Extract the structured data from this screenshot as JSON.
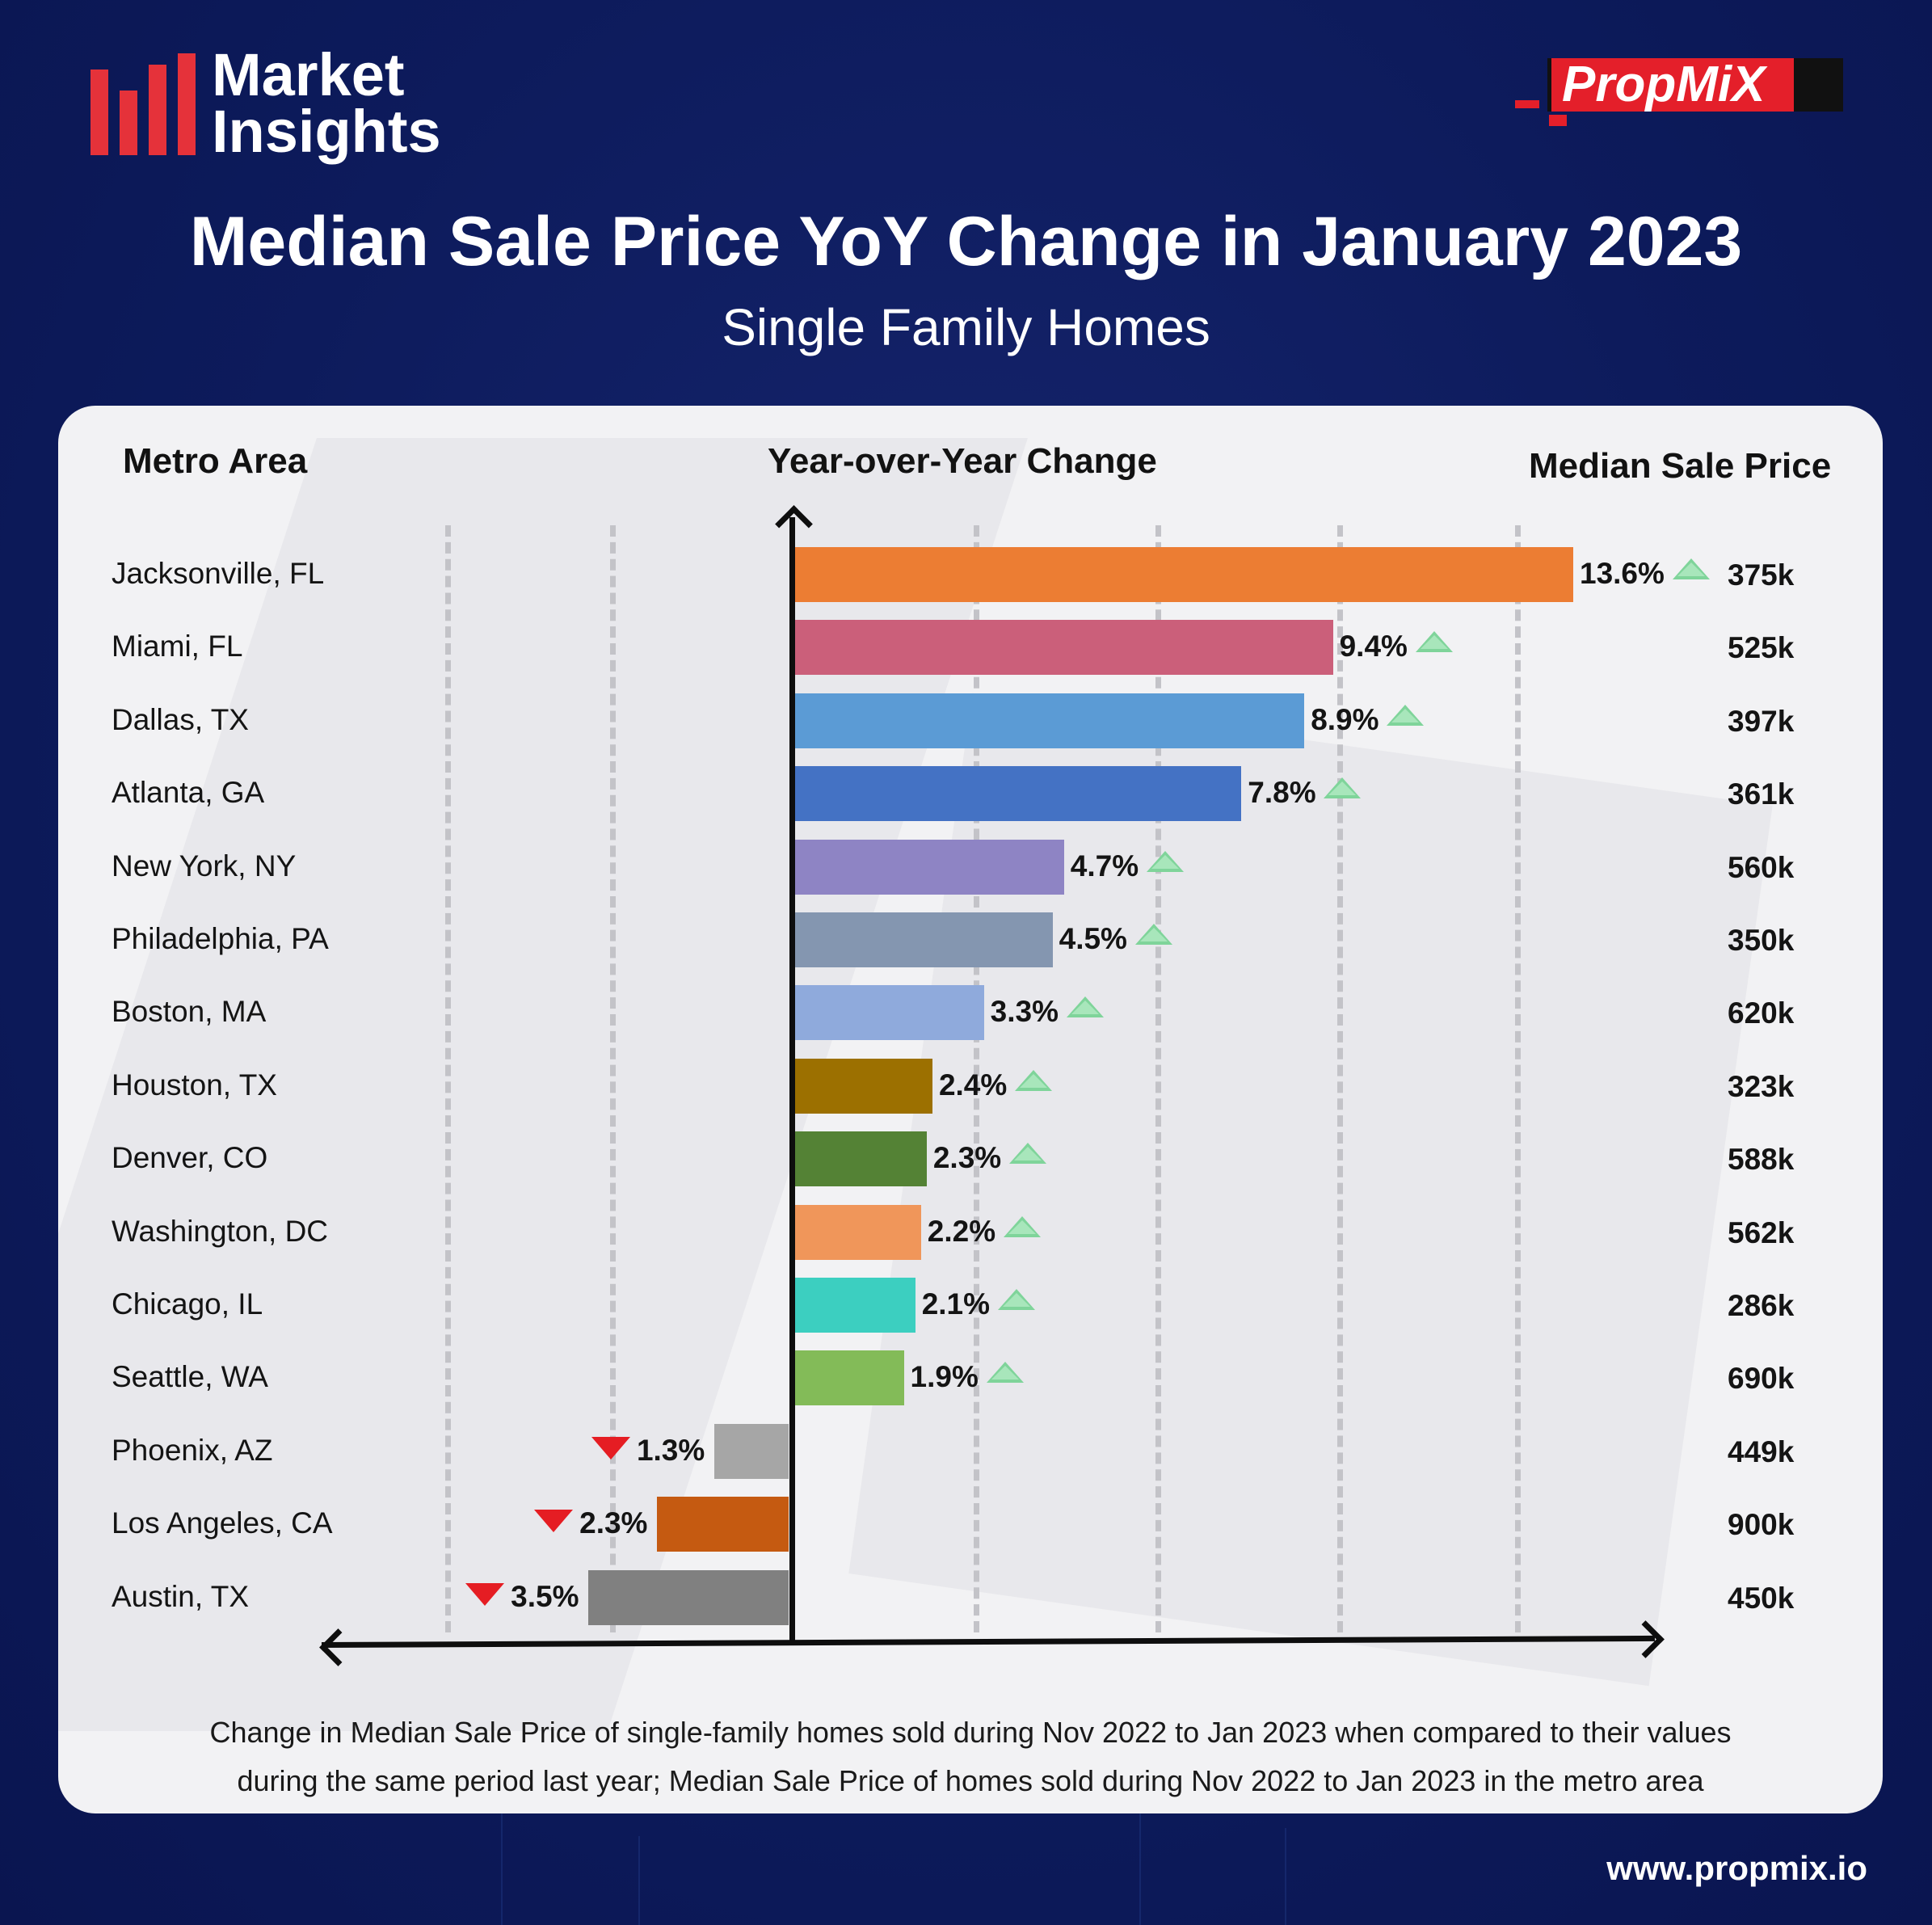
{
  "brand": {
    "logo_left_line1": "Market",
    "logo_left_line2": "Insights",
    "logo_right": "PropMiX",
    "website": "www.propmix.io"
  },
  "colors": {
    "background": "#0d1b5c",
    "brand_red": "#e5323a",
    "increase_marker": "#7fd49a",
    "decrease_marker": "#e51d23"
  },
  "headers": {
    "metro": "Metro Area",
    "yoy": "Year-over-Year Change",
    "price": "Median Sale Price"
  },
  "footnote": {
    "line1": "Change in Median Sale Price of single-family homes sold during Nov 2022 to Jan 2023 when compared to their values",
    "line2": "during the same period last year; Median Sale Price of homes sold during Nov 2022 to Jan 2023 in the metro area"
  },
  "chart_data": {
    "type": "bar",
    "orientation": "horizontal",
    "title": "Median Sale Price YoY Change in January 2023",
    "subtitle": "Single Family Homes",
    "xlabel": "",
    "ylabel": "",
    "xlim": [
      -4.4,
      13.6
    ],
    "grid": true,
    "categories": [
      "Jacksonville, FL",
      "Miami, FL",
      "Dallas, TX",
      "Atlanta, GA",
      "New York, NY",
      "Philadelphia, PA",
      "Boston, MA",
      "Houston, TX",
      "Denver, CO",
      "Washington, DC",
      "Chicago, IL",
      "Seattle, WA",
      "Phoenix, AZ",
      "Los Angeles, CA",
      "Austin, TX"
    ],
    "values": [
      13.6,
      9.4,
      8.9,
      7.8,
      4.7,
      4.5,
      3.3,
      2.4,
      2.3,
      2.2,
      2.1,
      1.9,
      -1.3,
      -2.3,
      -3.5
    ],
    "value_labels": [
      "13.6%",
      "9.4%",
      "8.9%",
      "7.8%",
      "4.7%",
      "4.5%",
      "3.3%",
      "2.4%",
      "2.3%",
      "2.2%",
      "2.1%",
      "1.9%",
      "1.3%",
      "2.3%",
      "3.5%"
    ],
    "median_sale_price": [
      "375k",
      "525k",
      "397k",
      "361k",
      "560k",
      "350k",
      "620k",
      "323k",
      "588k",
      "562k",
      "286k",
      "690k",
      "449k",
      "900k",
      "450k"
    ],
    "bar_colors": [
      "#ec7d33",
      "#cb5f7a",
      "#5b9bd5",
      "#4472c4",
      "#8e84c4",
      "#8496b0",
      "#8faadc",
      "#9c7000",
      "#548235",
      "#f0965a",
      "#3ccfc0",
      "#83bb58",
      "#a6a6a6",
      "#c55a11",
      "#808080"
    ]
  }
}
